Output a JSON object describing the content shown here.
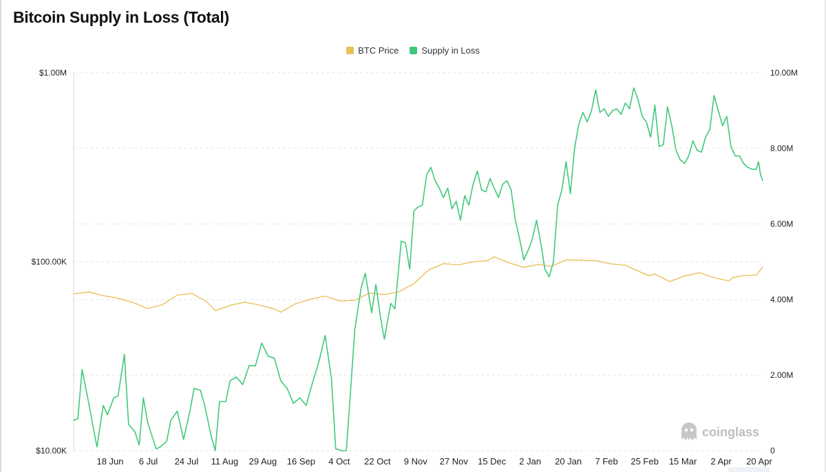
{
  "title": "Bitcoin Supply in Loss (Total)",
  "legend": [
    {
      "label": "BTC Price",
      "color": "#e8c15a"
    },
    {
      "label": "Supply in Loss",
      "color": "#3ec97a"
    }
  ],
  "watermark": {
    "text": "coinglass",
    "icon": "ghost-logo-icon"
  },
  "chart_data": {
    "type": "line",
    "title": "Bitcoin Supply in Loss (Total)",
    "grid": "horizontal dashed",
    "legend_position": "top-center",
    "left_axis": {
      "scale": "log",
      "range": [
        10000,
        1000000
      ],
      "ticks": [
        "$1.00M",
        "$100.00K",
        "$10.00K"
      ],
      "tick_values": [
        1000000,
        100000,
        10000
      ]
    },
    "right_axis": {
      "scale": "linear",
      "range": [
        0,
        10000000
      ],
      "ticks": [
        "10.00M",
        "8.00M",
        "6.00M",
        "4.00M",
        "2.00M",
        "0"
      ],
      "tick_values": [
        10000000,
        8000000,
        6000000,
        4000000,
        2000000,
        0
      ]
    },
    "x_ticks": [
      "18 Jun",
      "6 Jul",
      "24 Jul",
      "11 Aug",
      "29 Aug",
      "16 Sep",
      "4 Oct",
      "22 Oct",
      "9 Nov",
      "27 Nov",
      "15 Dec",
      "2 Jan",
      "20 Jan",
      "7 Feb",
      "25 Feb",
      "15 Mar",
      "2 Apr",
      "20 Apr"
    ],
    "x_start": "2024-06-01",
    "x_end": "2025-04-23",
    "series": [
      {
        "name": "BTC Price",
        "axis": "left",
        "color": "#e8c15a",
        "points": [
          [
            "2024-06-01",
            67500
          ],
          [
            "2024-06-08",
            69300
          ],
          [
            "2024-06-15",
            66200
          ],
          [
            "2024-06-22",
            64100
          ],
          [
            "2024-06-29",
            60900
          ],
          [
            "2024-07-06",
            56600
          ],
          [
            "2024-07-13",
            59200
          ],
          [
            "2024-07-20",
            66700
          ],
          [
            "2024-07-27",
            67900
          ],
          [
            "2024-08-03",
            61400
          ],
          [
            "2024-08-07",
            55100
          ],
          [
            "2024-08-14",
            58700
          ],
          [
            "2024-08-21",
            61100
          ],
          [
            "2024-08-28",
            59000
          ],
          [
            "2024-09-04",
            56200
          ],
          [
            "2024-09-07",
            54100
          ],
          [
            "2024-09-14",
            60000
          ],
          [
            "2024-09-21",
            63300
          ],
          [
            "2024-09-28",
            65800
          ],
          [
            "2024-10-05",
            62000
          ],
          [
            "2024-10-12",
            62500
          ],
          [
            "2024-10-19",
            68300
          ],
          [
            "2024-10-26",
            67000
          ],
          [
            "2024-11-02",
            69500
          ],
          [
            "2024-11-09",
            76600
          ],
          [
            "2024-11-16",
            90600
          ],
          [
            "2024-11-23",
            97800
          ],
          [
            "2024-11-30",
            96400
          ],
          [
            "2024-12-07",
            99800
          ],
          [
            "2024-12-14",
            101400
          ],
          [
            "2024-12-17",
            106100
          ],
          [
            "2024-12-24",
            98700
          ],
          [
            "2024-12-31",
            93400
          ],
          [
            "2025-01-07",
            96900
          ],
          [
            "2025-01-13",
            94500
          ],
          [
            "2025-01-20",
            102300
          ],
          [
            "2025-01-27",
            101900
          ],
          [
            "2025-02-03",
            101400
          ],
          [
            "2025-02-10",
            97500
          ],
          [
            "2025-02-17",
            95800
          ],
          [
            "2025-02-28",
            84400
          ],
          [
            "2025-03-03",
            86100
          ],
          [
            "2025-03-10",
            78600
          ],
          [
            "2025-03-17",
            84000
          ],
          [
            "2025-03-24",
            87500
          ],
          [
            "2025-03-31",
            82500
          ],
          [
            "2025-04-07",
            79200
          ],
          [
            "2025-04-09",
            82600
          ],
          [
            "2025-04-14",
            84500
          ],
          [
            "2025-04-20",
            85100
          ],
          [
            "2025-04-23",
            93700
          ]
        ]
      },
      {
        "name": "Supply in Loss",
        "axis": "right",
        "color": "#3ec97a",
        "points": [
          [
            "2024-06-01",
            800000
          ],
          [
            "2024-06-03",
            850000
          ],
          [
            "2024-06-05",
            2150000
          ],
          [
            "2024-06-08",
            1300000
          ],
          [
            "2024-06-10",
            700000
          ],
          [
            "2024-06-12",
            100000
          ],
          [
            "2024-06-15",
            1200000
          ],
          [
            "2024-06-17",
            950000
          ],
          [
            "2024-06-20",
            1400000
          ],
          [
            "2024-06-22",
            1450000
          ],
          [
            "2024-06-25",
            2550000
          ],
          [
            "2024-06-27",
            700000
          ],
          [
            "2024-06-30",
            500000
          ],
          [
            "2024-07-02",
            150000
          ],
          [
            "2024-07-04",
            1400000
          ],
          [
            "2024-07-06",
            750000
          ],
          [
            "2024-07-08",
            400000
          ],
          [
            "2024-07-10",
            50000
          ],
          [
            "2024-07-12",
            100000
          ],
          [
            "2024-07-15",
            250000
          ],
          [
            "2024-07-17",
            800000
          ],
          [
            "2024-07-20",
            1050000
          ],
          [
            "2024-07-23",
            300000
          ],
          [
            "2024-07-26",
            1050000
          ],
          [
            "2024-07-28",
            1650000
          ],
          [
            "2024-07-31",
            1600000
          ],
          [
            "2024-08-02",
            1200000
          ],
          [
            "2024-08-05",
            400000
          ],
          [
            "2024-08-07",
            0
          ],
          [
            "2024-08-09",
            1300000
          ],
          [
            "2024-08-12",
            1300000
          ],
          [
            "2024-08-14",
            1850000
          ],
          [
            "2024-08-17",
            1950000
          ],
          [
            "2024-08-20",
            1750000
          ],
          [
            "2024-08-23",
            2250000
          ],
          [
            "2024-08-26",
            2250000
          ],
          [
            "2024-08-29",
            2850000
          ],
          [
            "2024-09-01",
            2500000
          ],
          [
            "2024-09-04",
            2450000
          ],
          [
            "2024-09-07",
            1850000
          ],
          [
            "2024-09-10",
            1650000
          ],
          [
            "2024-09-13",
            1250000
          ],
          [
            "2024-09-16",
            1400000
          ],
          [
            "2024-09-19",
            1200000
          ],
          [
            "2024-09-22",
            1800000
          ],
          [
            "2024-09-25",
            2350000
          ],
          [
            "2024-09-28",
            3050000
          ],
          [
            "2024-10-01",
            1900000
          ],
          [
            "2024-10-03",
            50000
          ],
          [
            "2024-10-06",
            0
          ],
          [
            "2024-10-08",
            0
          ],
          [
            "2024-10-10",
            1550000
          ],
          [
            "2024-10-12",
            3200000
          ],
          [
            "2024-10-15",
            4300000
          ],
          [
            "2024-10-17",
            4700000
          ],
          [
            "2024-10-20",
            3650000
          ],
          [
            "2024-10-22",
            4400000
          ],
          [
            "2024-10-24",
            3600000
          ],
          [
            "2024-10-26",
            2950000
          ],
          [
            "2024-10-29",
            3900000
          ],
          [
            "2024-10-31",
            3750000
          ],
          [
            "2024-11-03",
            5550000
          ],
          [
            "2024-11-05",
            5500000
          ],
          [
            "2024-11-07",
            4800000
          ],
          [
            "2024-11-09",
            6350000
          ],
          [
            "2024-11-11",
            6450000
          ],
          [
            "2024-11-13",
            6500000
          ],
          [
            "2024-11-15",
            7300000
          ],
          [
            "2024-11-17",
            7500000
          ],
          [
            "2024-11-19",
            7150000
          ],
          [
            "2024-11-21",
            6950000
          ],
          [
            "2024-11-23",
            6700000
          ],
          [
            "2024-11-25",
            6950000
          ],
          [
            "2024-11-27",
            6400000
          ],
          [
            "2024-11-29",
            6600000
          ],
          [
            "2024-12-01",
            6100000
          ],
          [
            "2024-12-03",
            6750000
          ],
          [
            "2024-12-05",
            6500000
          ],
          [
            "2024-12-07",
            7050000
          ],
          [
            "2024-12-09",
            7400000
          ],
          [
            "2024-12-11",
            6900000
          ],
          [
            "2024-12-13",
            6850000
          ],
          [
            "2024-12-15",
            7200000
          ],
          [
            "2024-12-17",
            6950000
          ],
          [
            "2024-12-19",
            6700000
          ],
          [
            "2024-12-21",
            7050000
          ],
          [
            "2024-12-23",
            7150000
          ],
          [
            "2024-12-25",
            6900000
          ],
          [
            "2024-12-27",
            6100000
          ],
          [
            "2024-12-29",
            5600000
          ],
          [
            "2024-12-31",
            5050000
          ],
          [
            "2025-01-02",
            5300000
          ],
          [
            "2025-01-04",
            5600000
          ],
          [
            "2025-01-06",
            6100000
          ],
          [
            "2025-01-08",
            5500000
          ],
          [
            "2025-01-10",
            4800000
          ],
          [
            "2025-01-12",
            4600000
          ],
          [
            "2025-01-14",
            5000000
          ],
          [
            "2025-01-16",
            6500000
          ],
          [
            "2025-01-18",
            6900000
          ],
          [
            "2025-01-20",
            7650000
          ],
          [
            "2025-01-22",
            6800000
          ],
          [
            "2025-01-24",
            8000000
          ],
          [
            "2025-01-26",
            8650000
          ],
          [
            "2025-01-28",
            8950000
          ],
          [
            "2025-01-30",
            8700000
          ],
          [
            "2025-02-01",
            9000000
          ],
          [
            "2025-02-03",
            9550000
          ],
          [
            "2025-02-05",
            8950000
          ],
          [
            "2025-02-07",
            9050000
          ],
          [
            "2025-02-09",
            8850000
          ],
          [
            "2025-02-11",
            9000000
          ],
          [
            "2025-02-13",
            9050000
          ],
          [
            "2025-02-15",
            8900000
          ],
          [
            "2025-02-17",
            9200000
          ],
          [
            "2025-02-19",
            9050000
          ],
          [
            "2025-02-21",
            9600000
          ],
          [
            "2025-02-23",
            9300000
          ],
          [
            "2025-02-25",
            8850000
          ],
          [
            "2025-02-27",
            8700000
          ],
          [
            "2025-03-01",
            8300000
          ],
          [
            "2025-03-03",
            9150000
          ],
          [
            "2025-03-05",
            8050000
          ],
          [
            "2025-03-07",
            8100000
          ],
          [
            "2025-03-09",
            9100000
          ],
          [
            "2025-03-11",
            8600000
          ],
          [
            "2025-03-13",
            7950000
          ],
          [
            "2025-03-15",
            7700000
          ],
          [
            "2025-03-17",
            7600000
          ],
          [
            "2025-03-19",
            7800000
          ],
          [
            "2025-03-21",
            8200000
          ],
          [
            "2025-03-23",
            7950000
          ],
          [
            "2025-03-25",
            7900000
          ],
          [
            "2025-03-27",
            8300000
          ],
          [
            "2025-03-29",
            8500000
          ],
          [
            "2025-03-31",
            9400000
          ],
          [
            "2025-04-02",
            9000000
          ],
          [
            "2025-04-04",
            8600000
          ],
          [
            "2025-04-06",
            8850000
          ],
          [
            "2025-04-08",
            8050000
          ],
          [
            "2025-04-10",
            7800000
          ],
          [
            "2025-04-12",
            7800000
          ],
          [
            "2025-04-14",
            7600000
          ],
          [
            "2025-04-16",
            7500000
          ],
          [
            "2025-04-18",
            7450000
          ],
          [
            "2025-04-20",
            7450000
          ],
          [
            "2025-04-21",
            7650000
          ],
          [
            "2025-04-22",
            7300000
          ],
          [
            "2025-04-23",
            7150000
          ]
        ]
      }
    ]
  }
}
